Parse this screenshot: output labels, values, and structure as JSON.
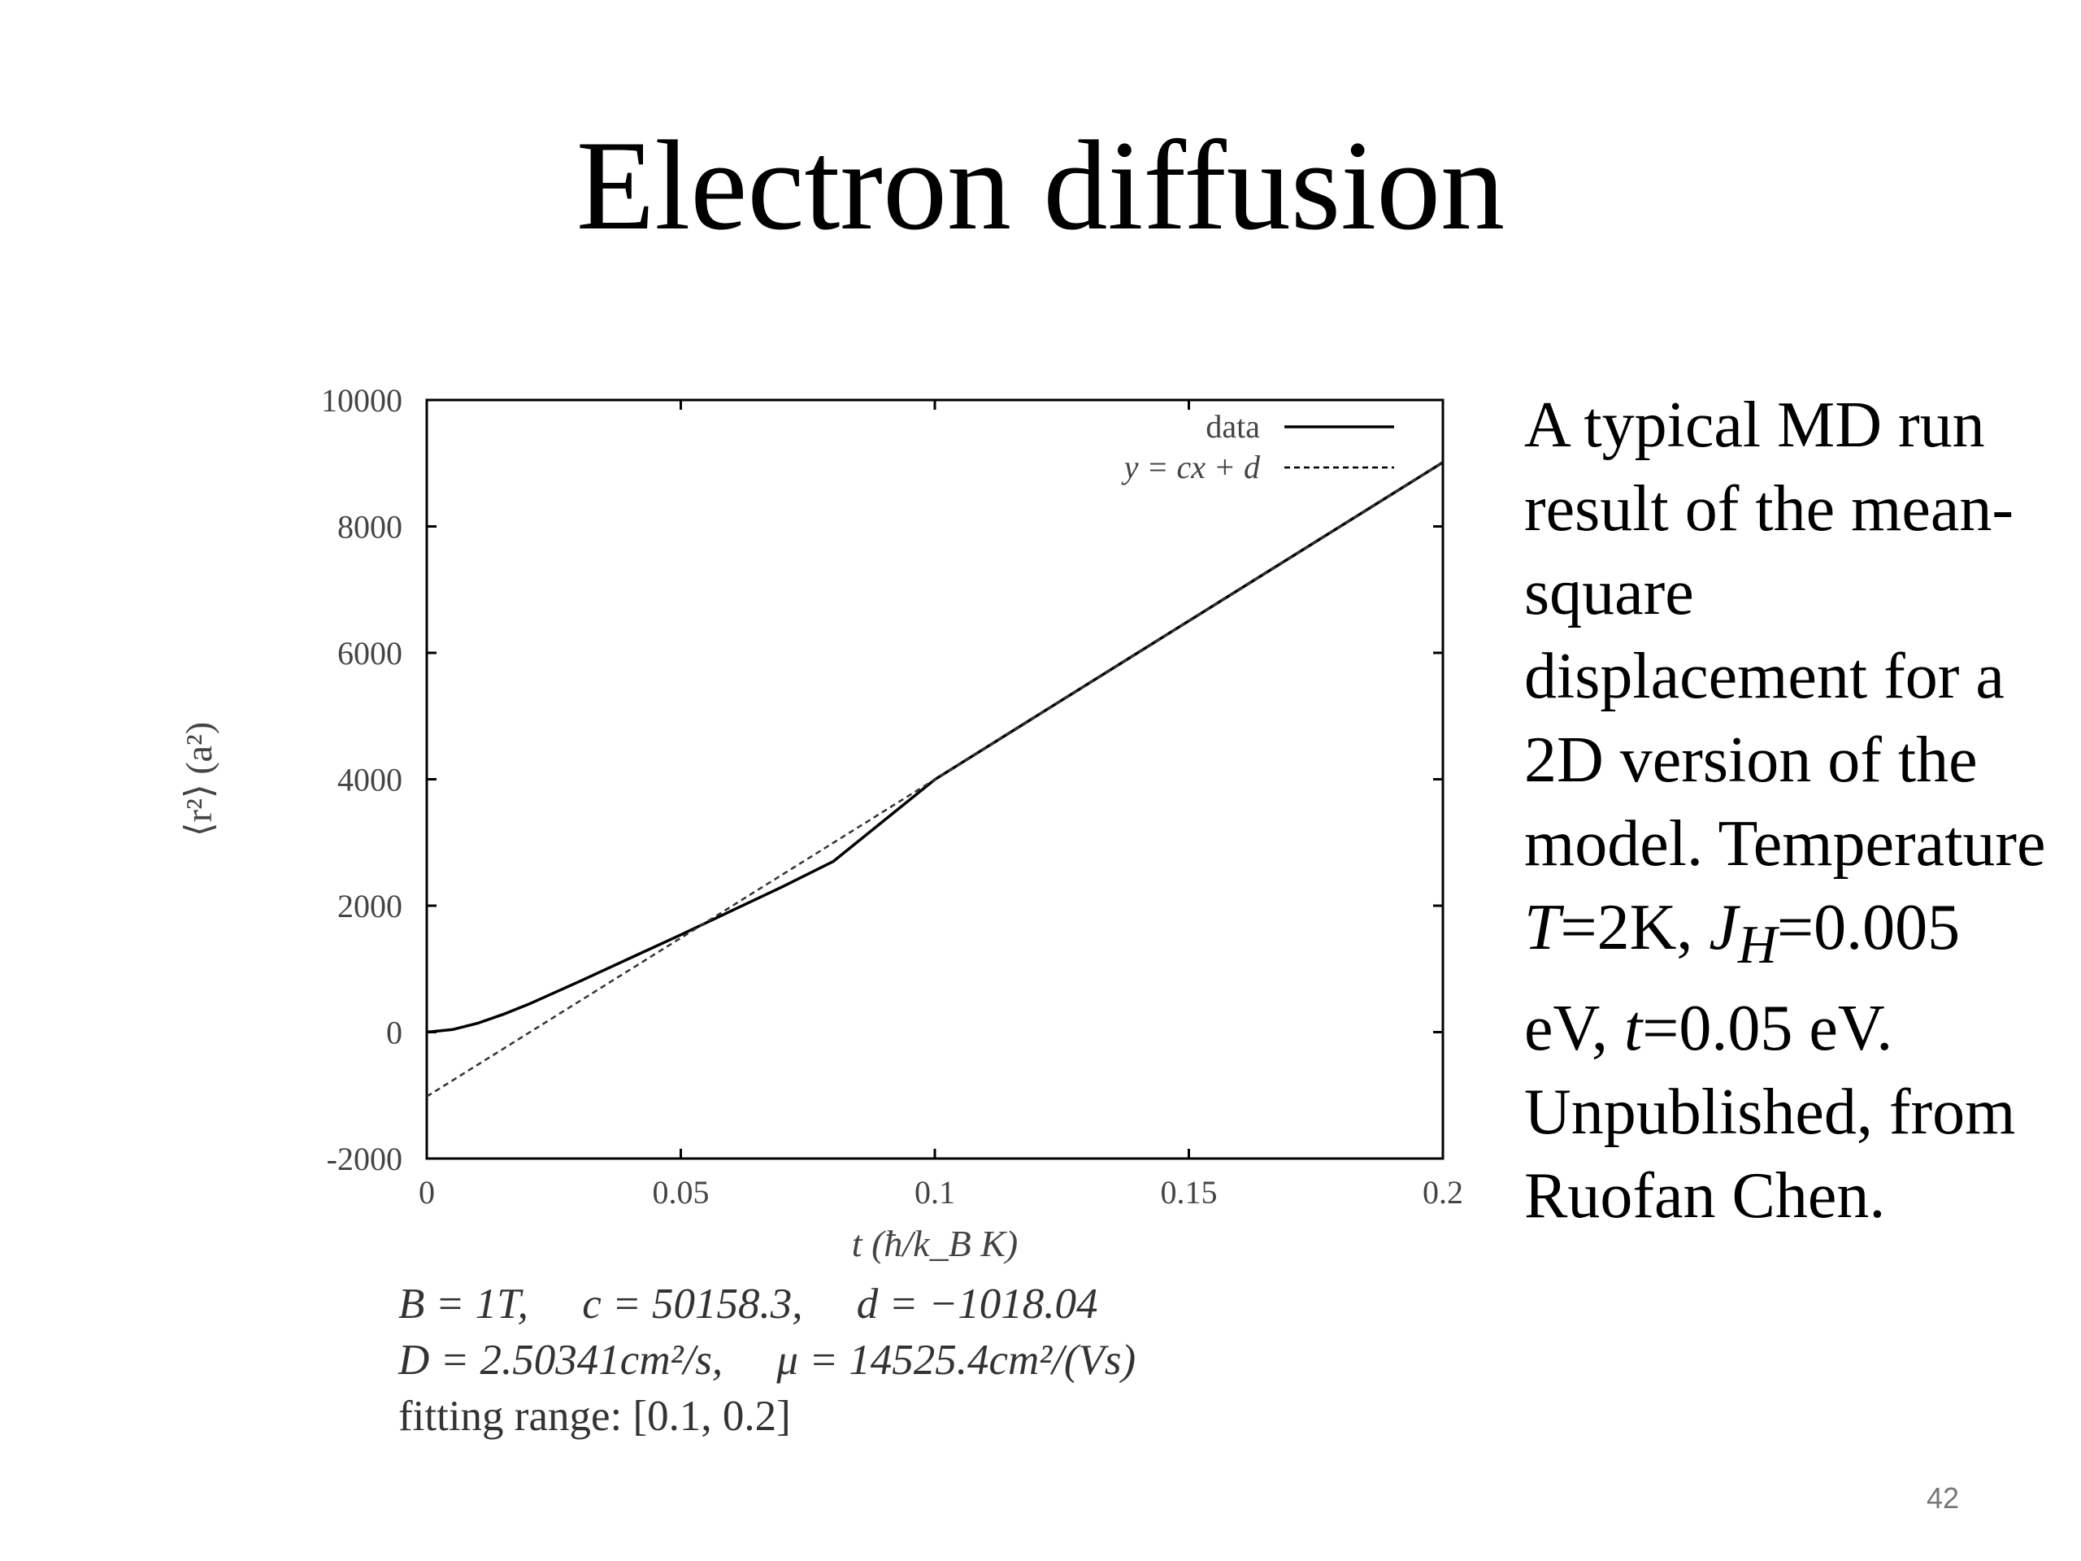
{
  "slide": {
    "title": "Electron diffusion",
    "page_number": "42"
  },
  "chart_data": {
    "type": "line",
    "xlabel": "t (ħ/k_B K)",
    "ylabel": "⟨r²⟩ (a²)",
    "xlim": [
      0,
      0.2
    ],
    "ylim": [
      -2000,
      10000
    ],
    "x_ticks": [
      "0",
      "0.05",
      "0.1",
      "0.15",
      "0.2"
    ],
    "y_ticks": [
      "-2000",
      "0",
      "2000",
      "4000",
      "6000",
      "8000",
      "10000"
    ],
    "grid": false,
    "legend_position": "top-right",
    "series": [
      {
        "name": "data",
        "style": "solid",
        "x": [
          0,
          0.005,
          0.01,
          0.015,
          0.02,
          0.03,
          0.04,
          0.05,
          0.06,
          0.07,
          0.08,
          0.1,
          0.12,
          0.15,
          0.2
        ],
        "y": [
          0,
          40,
          140,
          280,
          440,
          800,
          1170,
          1540,
          1920,
          2300,
          2700,
          3996,
          5001,
          6506,
          9014
        ]
      },
      {
        "name": "y = cx + d",
        "style": "dashed",
        "x": [
          0,
          0.2
        ],
        "y": [
          -1018.04,
          9013.62
        ]
      }
    ],
    "annotations": {
      "line1": {
        "B": "B = 1T,",
        "c": "c = 50158.3,",
        "d": "d = −1018.04"
      },
      "line2": {
        "D": "D = 2.50341cm²/s,",
        "mu": "μ = 14525.4cm²/(Vs)"
      },
      "line3": "fitting range:  [0.1, 0.2]"
    }
  },
  "description": {
    "text1": "A typical MD run result of the mean-square displacement for a 2D version of the model. Temperature ",
    "T": "T",
    "t2": "=2K, ",
    "J": "J",
    "H": "H",
    "t3": "=0.005 eV, ",
    "tt": "t",
    "t4": "=0.05 eV. Unpublished, from Ruofan Chen."
  }
}
